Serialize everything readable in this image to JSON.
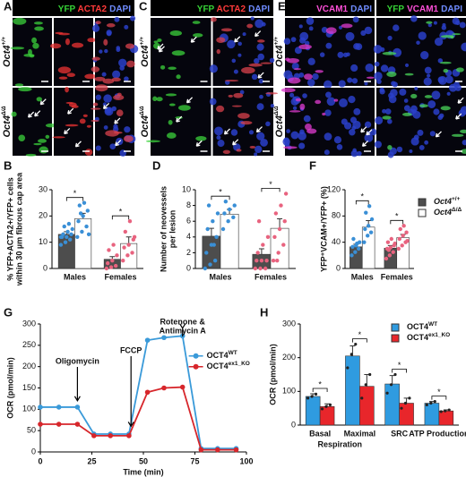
{
  "images": [
    {
      "letter": "A",
      "headers": [
        [
          {
            "text": "YFP",
            "color": "#36d236"
          },
          {
            "text": "ACTA2",
            "color": "#ff3a3a"
          },
          {
            "text": "DAPI",
            "color": "#6f8cff"
          }
        ]
      ],
      "rows": [
        {
          "gene": "Oct4",
          "sup": "+/+"
        },
        {
          "gene": "Oct4",
          "sup": "Δ/Δ"
        }
      ]
    },
    {
      "letter": "C",
      "headers": [
        [
          {
            "text": "YFP",
            "color": "#36d236"
          },
          {
            "text": "ACTA2",
            "color": "#ff3a3a"
          },
          {
            "text": "DAPI",
            "color": "#6f8cff"
          }
        ]
      ],
      "rows": [
        {
          "gene": "Oct4",
          "sup": "+/+"
        },
        {
          "gene": "Oct4",
          "sup": "Δ/Δ"
        }
      ]
    },
    {
      "letter": "E",
      "headers": [
        [
          {
            "text": "VCAM1",
            "color": "#ff4fd8"
          },
          {
            "text": "DAPI",
            "color": "#6f8cff"
          }
        ],
        [
          {
            "text": "YFP",
            "color": "#36d236"
          },
          {
            "text": "VCAM1",
            "color": "#ff4fd8"
          },
          {
            "text": "DAPI",
            "color": "#6f8cff"
          }
        ]
      ],
      "rows": [
        {
          "gene": "Oct4",
          "sup": "+/+"
        },
        {
          "gene": "Oct4",
          "sup": "Δ/Δ"
        }
      ]
    }
  ],
  "chart_data": [
    {
      "type": "bar",
      "letter": "B",
      "ylabel": [
        "% YFP+ACTA2+/YFP+ cells",
        "within 30 µm fibrous cap area"
      ],
      "categories": [
        "Males",
        "Females"
      ],
      "point_colors": [
        "#3a8fd6",
        "#e8637f"
      ],
      "ylim": [
        0,
        30
      ],
      "yticks": [
        0,
        10,
        20,
        30
      ],
      "annotations": [
        "*",
        "*"
      ],
      "series": [
        {
          "color": "#4d4d4d",
          "values": [
            13,
            3.5
          ],
          "errors": [
            1,
            1
          ],
          "points": [
            [
              9,
              10,
              11,
              12,
              12,
              13,
              13,
              14,
              15,
              16,
              17,
              12
            ],
            [
              0,
              0.5,
              1,
              2,
              3,
              5,
              7,
              9
            ]
          ]
        },
        {
          "color": "#ffffff",
          "values": [
            19,
            9.5
          ],
          "errors": [
            2,
            2.5
          ],
          "points": [
            [
              12,
              14,
              16,
              18,
              20,
              22,
              24,
              25,
              13,
              21
            ],
            [
              3,
              5,
              6,
              8,
              9,
              11,
              14,
              18,
              12
            ]
          ]
        }
      ]
    },
    {
      "type": "bar",
      "letter": "D",
      "ylabel": [
        "Number of neovessels",
        "per lesion"
      ],
      "categories": [
        "Males",
        "Females"
      ],
      "point_colors": [
        "#3a8fd6",
        "#e8637f"
      ],
      "ylim": [
        0,
        10
      ],
      "yticks": [
        0,
        2,
        4,
        6,
        8,
        10
      ],
      "annotations": [
        "*",
        "*"
      ],
      "series": [
        {
          "color": "#4d4d4d",
          "values": [
            4.1,
            1.8
          ],
          "errors": [
            1,
            0.7
          ],
          "points": [
            [
              0,
              0.5,
              1,
              2,
              3,
              4,
              5,
              6,
              7,
              8,
              3
            ],
            [
              0,
              0,
              0,
              1,
              1,
              1,
              2,
              3,
              4,
              6
            ]
          ]
        },
        {
          "color": "#ffffff",
          "values": [
            6.9,
            5.1
          ],
          "errors": [
            0.6,
            1.2
          ],
          "points": [
            [
              5,
              6,
              6.5,
              7,
              7.5,
              8,
              8.5
            ],
            [
              1,
              2,
              3,
              4,
              5,
              6,
              7,
              8,
              9.5,
              1
            ]
          ]
        }
      ]
    },
    {
      "type": "bar",
      "letter": "F",
      "ylabel": [
        "YFP⁺VCAM+/YFP+ (%)"
      ],
      "categories": [
        "Males",
        "Females"
      ],
      "point_colors": [
        "#3a8fd6",
        "#e8637f"
      ],
      "ylim": [
        0,
        120
      ],
      "yticks": [
        0,
        40,
        80,
        120
      ],
      "annotations": [
        "*",
        "*"
      ],
      "series": [
        {
          "name": "Oct4",
          "sup": "+/+",
          "color": "#4d4d4d",
          "values": [
            33,
            31
          ],
          "errors": [
            4,
            4
          ],
          "points": [
            [
              20,
              25,
              30,
              33,
              35,
              40,
              45,
              38
            ],
            [
              15,
              20,
              25,
              30,
              32,
              35,
              40,
              45,
              38,
              28
            ]
          ]
        },
        {
          "name": "Oct4",
          "sup": "Δ/Δ",
          "color": "#ffffff",
          "values": [
            63,
            47
          ],
          "errors": [
            10,
            5
          ],
          "points": [
            [
              40,
              50,
              55,
              60,
              65,
              75,
              85,
              95
            ],
            [
              30,
              35,
              40,
              45,
              50,
              55,
              60,
              65,
              42
            ]
          ]
        }
      ]
    },
    {
      "type": "line",
      "letter": "G",
      "ylabel": [
        "OCR (pmol/min)"
      ],
      "xlabel": "Time (min)",
      "xlim": [
        0,
        100
      ],
      "xticks": [
        0,
        25,
        50,
        75,
        100
      ],
      "ylim": [
        0,
        300
      ],
      "yticks": [
        0,
        50,
        100,
        150,
        200,
        250,
        300
      ],
      "annotations": [
        {
          "text": "Oligomycin",
          "x": 18
        },
        {
          "text": "FCCP",
          "x": 44
        },
        {
          "text": "Rotenone &",
          "x": 69
        },
        {
          "text": "Antimycin A",
          "x": 69
        }
      ],
      "series": [
        {
          "name": "OCT4",
          "sup": "WT",
          "color": "#3a9ad9",
          "x": [
            0,
            9,
            18,
            26,
            34,
            43,
            52,
            60,
            69,
            78,
            86,
            95
          ],
          "values": [
            105,
            105,
            105,
            42,
            42,
            42,
            262,
            268,
            272,
            8,
            8,
            8
          ]
        },
        {
          "name": "OCT4",
          "sup": "ex1_KO",
          "color": "#d7262b",
          "x": [
            0,
            9,
            18,
            26,
            34,
            43,
            52,
            60,
            69,
            78,
            86,
            95
          ],
          "values": [
            65,
            65,
            65,
            38,
            38,
            38,
            140,
            150,
            152,
            5,
            5,
            5
          ]
        }
      ]
    },
    {
      "type": "bar",
      "letter": "H",
      "ylabel": [
        "OCR (pmol/min)"
      ],
      "categories": [
        "Basal",
        "Maximal",
        "SRC",
        "ATP Production"
      ],
      "category_group": "Respiration",
      "ylim": [
        0,
        300
      ],
      "yticks": [
        0,
        100,
        200,
        300
      ],
      "annotations": [
        "*",
        "*",
        "*",
        "*"
      ],
      "series": [
        {
          "name": "OCT4",
          "sup": "WT",
          "color": "#2f9be0",
          "values": [
            85,
            205,
            122,
            65
          ],
          "errors": [
            8,
            30,
            25,
            5
          ],
          "points": [
            [
              80,
              85,
              92
            ],
            [
              170,
              210,
              240
            ],
            [
              95,
              120,
              150
            ],
            [
              60,
              65,
              70
            ]
          ]
        },
        {
          "name": "OCT4",
          "sup": "ex1_KO",
          "color": "#e8262b",
          "values": [
            55,
            115,
            65,
            42
          ],
          "errors": [
            8,
            35,
            15,
            3
          ],
          "points": [
            [
              48,
              55,
              60
            ],
            [
              80,
              120,
              150
            ],
            [
              50,
              65,
              80
            ],
            [
              40,
              42,
              45
            ]
          ]
        }
      ]
    }
  ]
}
